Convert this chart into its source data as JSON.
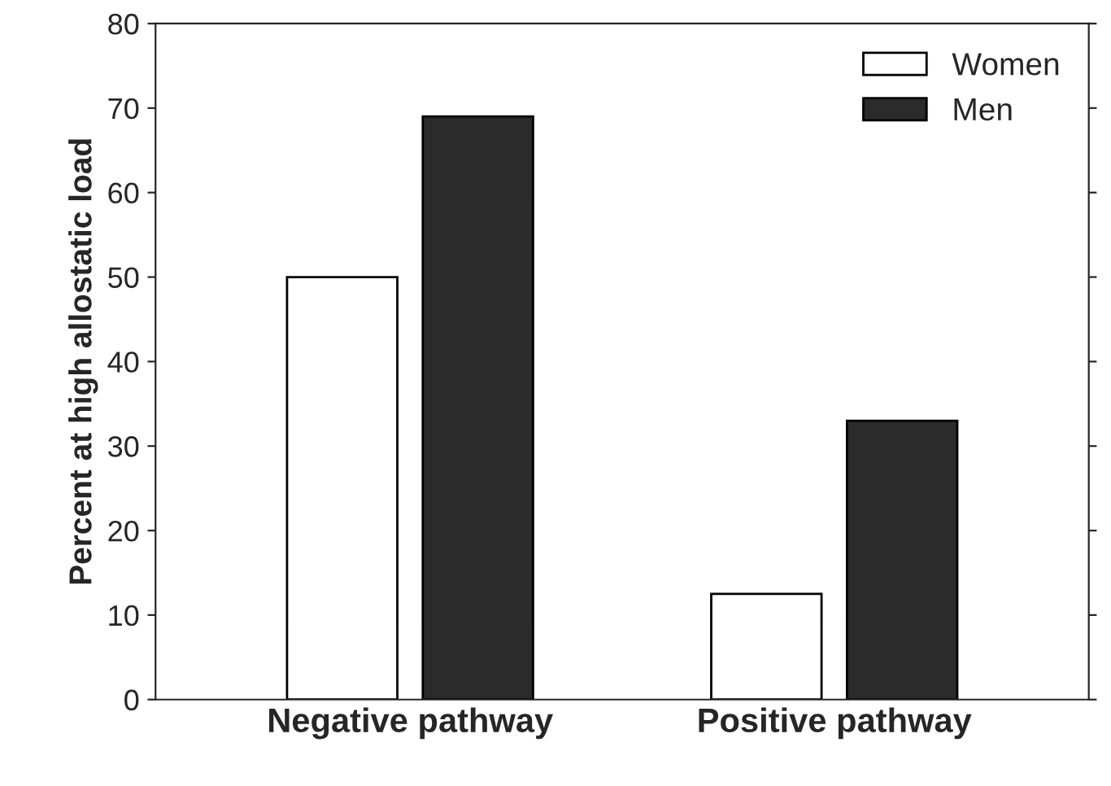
{
  "chart_data": {
    "type": "bar",
    "ylabel": "Percent at high allostatic load",
    "categories": [
      "Negative pathway",
      "Positive pathway"
    ],
    "series": [
      {
        "name": "Women",
        "color": "#ffffff",
        "values": [
          50,
          12.5
        ]
      },
      {
        "name": "Men",
        "color": "#2b2b2b",
        "values": [
          69,
          33
        ]
      }
    ],
    "ylim": [
      0,
      80
    ],
    "yticks": [
      0,
      10,
      20,
      30,
      40,
      50,
      60,
      70,
      80
    ],
    "grid": false,
    "legend": "top right"
  }
}
